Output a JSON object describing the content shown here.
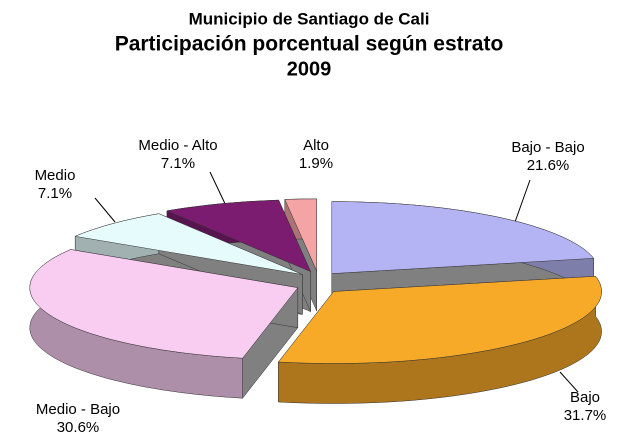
{
  "chart_data": {
    "type": "pie3d",
    "title": "Municipio de Santiago de Cali",
    "subtitle": "Participación porcentual según estrato",
    "date": "2009",
    "categories": [
      "Bajo - Bajo",
      "Bajo",
      "Medio - Bajo",
      "Medio",
      "Medio - Alto",
      "Alto"
    ],
    "values": [
      21.6,
      31.7,
      30.6,
      7.1,
      7.1,
      1.9
    ],
    "value_labels": [
      "21.6%",
      "31.7%",
      "30.6%",
      "7.1%",
      "7.1%",
      "1.9%"
    ],
    "colors": [
      "#b4b4f4",
      "#f7a928",
      "#f9ccf2",
      "#e6fbfb",
      "#7c1c70",
      "#f4a4a4"
    ]
  }
}
